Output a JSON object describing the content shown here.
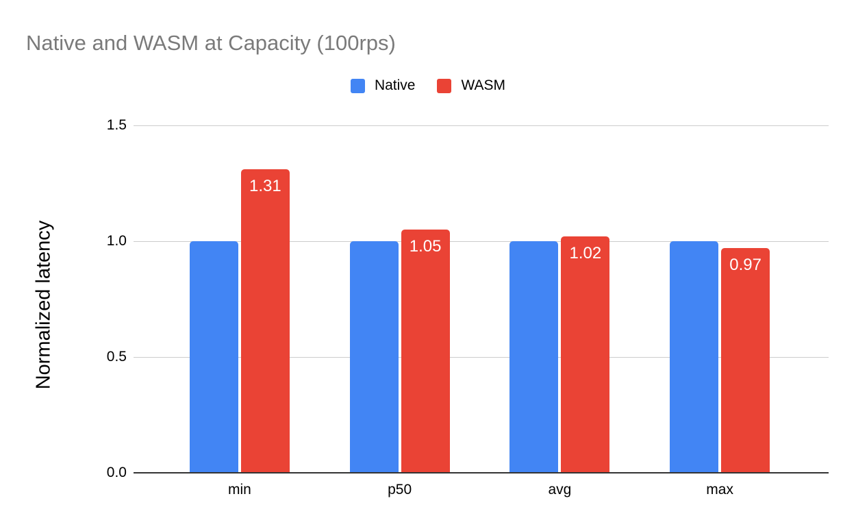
{
  "chart_data": {
    "type": "bar",
    "title": "Native and WASM at Capacity (100rps)",
    "ylabel": "Normalized latency",
    "xlabel": "",
    "categories": [
      "min",
      "p50",
      "avg",
      "max"
    ],
    "series": [
      {
        "name": "Native",
        "color": "#4285F4",
        "values": [
          1.0,
          1.0,
          1.0,
          1.0
        ]
      },
      {
        "name": "WASM",
        "color": "#EA4335",
        "values": [
          1.31,
          1.05,
          1.02,
          0.97
        ],
        "labels": [
          "1.31",
          "1.05",
          "1.02",
          "0.97"
        ]
      }
    ],
    "ylim": [
      0,
      1.5
    ],
    "yticks": [
      0,
      0.5,
      1,
      1.5
    ],
    "ytick_labels": [
      "0.0",
      "0.5",
      "1.0",
      "1.5"
    ],
    "grid": true,
    "legend_position": "top",
    "annotation_color": "#ffffff"
  },
  "colors": {
    "title_text": "#7a7a7a",
    "gridline": "#cccccc",
    "axis_line": "#333333",
    "axis_text": "#000000"
  }
}
